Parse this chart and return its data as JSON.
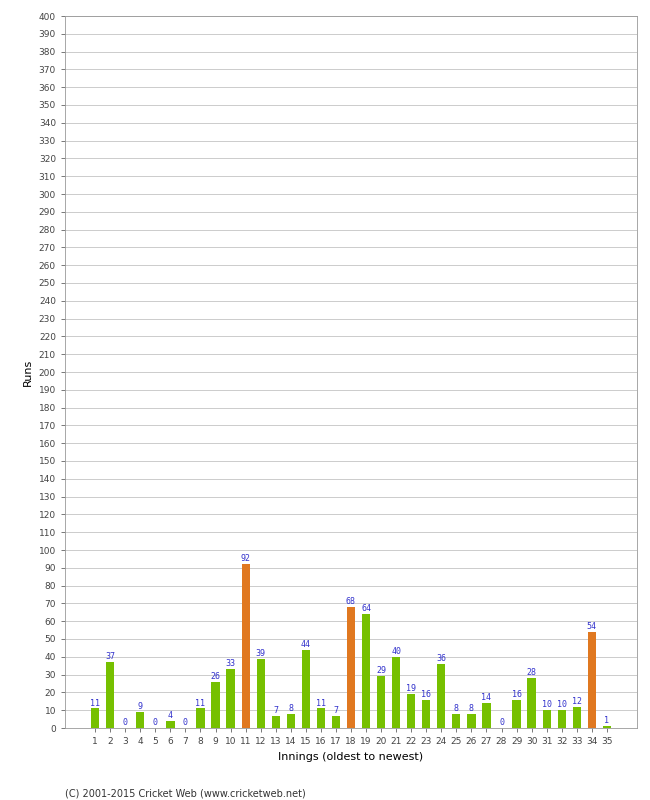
{
  "innings": [
    1,
    2,
    3,
    4,
    5,
    6,
    7,
    8,
    9,
    10,
    11,
    12,
    13,
    14,
    15,
    16,
    17,
    18,
    19,
    20,
    21,
    22,
    23,
    24,
    25,
    26,
    27,
    28,
    29,
    30,
    31,
    32,
    33,
    34,
    35
  ],
  "values": [
    11,
    37,
    0,
    9,
    0,
    4,
    0,
    11,
    26,
    33,
    92,
    39,
    7,
    8,
    44,
    11,
    7,
    68,
    64,
    29,
    40,
    19,
    16,
    36,
    8,
    8,
    14,
    0,
    16,
    28,
    10,
    10,
    12,
    54,
    1
  ],
  "colors": [
    "#76c000",
    "#76c000",
    "#76c000",
    "#76c000",
    "#76c000",
    "#76c000",
    "#76c000",
    "#76c000",
    "#76c000",
    "#76c000",
    "#e07820",
    "#76c000",
    "#76c000",
    "#76c000",
    "#76c000",
    "#76c000",
    "#76c000",
    "#e07820",
    "#76c000",
    "#76c000",
    "#76c000",
    "#76c000",
    "#76c000",
    "#76c000",
    "#76c000",
    "#76c000",
    "#76c000",
    "#76c000",
    "#76c000",
    "#76c000",
    "#76c000",
    "#76c000",
    "#76c000",
    "#e07820",
    "#76c000"
  ],
  "xlabel": "Innings (oldest to newest)",
  "ylabel": "Runs",
  "ylim": [
    0,
    400
  ],
  "yticks": [
    0,
    10,
    20,
    30,
    40,
    50,
    60,
    70,
    80,
    90,
    100,
    110,
    120,
    130,
    140,
    150,
    160,
    170,
    180,
    190,
    200,
    210,
    220,
    230,
    240,
    250,
    260,
    270,
    280,
    290,
    300,
    310,
    320,
    330,
    340,
    350,
    360,
    370,
    380,
    390,
    400
  ],
  "footer": "(C) 2001-2015 Cricket Web (www.cricketweb.net)",
  "label_color": "#3333cc",
  "bg_color": "#ffffff",
  "grid_color": "#cccccc",
  "bar_width": 0.55
}
